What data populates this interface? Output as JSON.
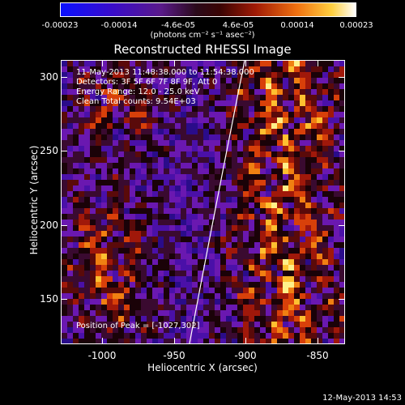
{
  "colorbar": {
    "ticks": [
      "-0.00023",
      "-0.00014",
      "-4.6e-05",
      "4.6e-05",
      "0.00014",
      "0.00023"
    ],
    "unit_label": "(photons cm⁻² s⁻¹ asec⁻²)"
  },
  "title": "Reconstructed RHESSI Image",
  "info": {
    "time_range": "11-May-2013 11:48:38.000 to 11:54:38.000",
    "detectors": "Detectors: 3F 5F 6F 7F 8F 9F, Att 0",
    "energy_range": "Energy Range: 12.0 - 25.0 keV",
    "method": "Clean    Total counts: 9.54E+03"
  },
  "peak": "Position of Peak = [-1027,302]",
  "axes": {
    "xlabel": "Heliocentric X (arcsec)",
    "ylabel": "Heliocentric Y (arcsec)",
    "xticks": [
      "-1000",
      "-950",
      "-900",
      "-850"
    ],
    "yticks": [
      "300",
      "250",
      "200",
      "150"
    ]
  },
  "timestamp": "12-May-2013 14:53"
}
